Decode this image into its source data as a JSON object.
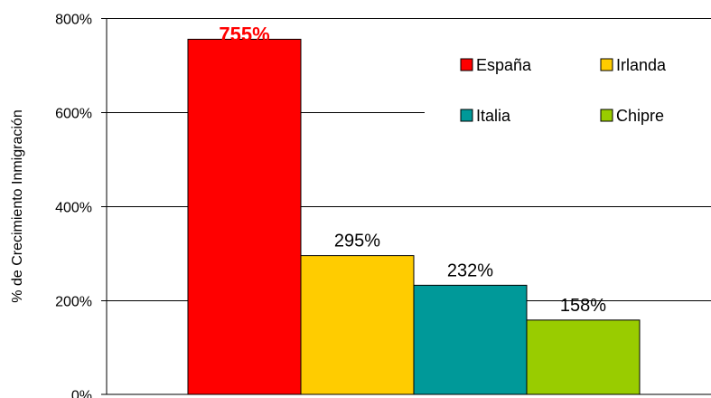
{
  "chart_data": {
    "type": "bar",
    "title": "",
    "xlabel": "",
    "ylabel": "% de Crecimiento Inmigración",
    "ylim": [
      0,
      800
    ],
    "yticks": [
      0,
      200,
      400,
      600,
      800
    ],
    "tick_suffix": "%",
    "grid": true,
    "legend_position": "top-right",
    "series": [
      {
        "name": "España",
        "value": 755,
        "label": "755%",
        "color": "#ff0000",
        "label_color": "#ff0000",
        "label_bold": true
      },
      {
        "name": "Irlanda",
        "value": 295,
        "label": "295%",
        "color": "#ffcc00",
        "label_color": "#000000",
        "label_bold": false
      },
      {
        "name": "Italia",
        "value": 232,
        "label": "232%",
        "color": "#009999",
        "label_color": "#000000",
        "label_bold": false
      },
      {
        "name": "Chipre",
        "value": 158,
        "label": "158%",
        "color": "#99cc00",
        "label_color": "#000000",
        "label_bold": false
      }
    ]
  }
}
